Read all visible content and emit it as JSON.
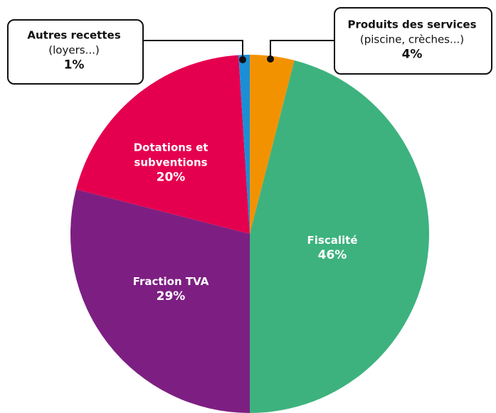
{
  "chart_data": {
    "type": "pie",
    "categories": [
      "Produits des services",
      "Fiscalité",
      "Fraction TVA",
      "Dotations et subventions",
      "Autres recettes"
    ],
    "details": [
      "(piscine, crèches...)",
      null,
      null,
      null,
      "(loyers...)"
    ],
    "values": [
      4,
      46,
      29,
      20,
      1
    ],
    "value_labels": [
      "4%",
      "46%",
      "29%",
      "20%",
      "1%"
    ],
    "colors": [
      "#f39200",
      "#3db27e",
      "#7d1f82",
      "#e5004f",
      "#1a8fd6"
    ]
  }
}
